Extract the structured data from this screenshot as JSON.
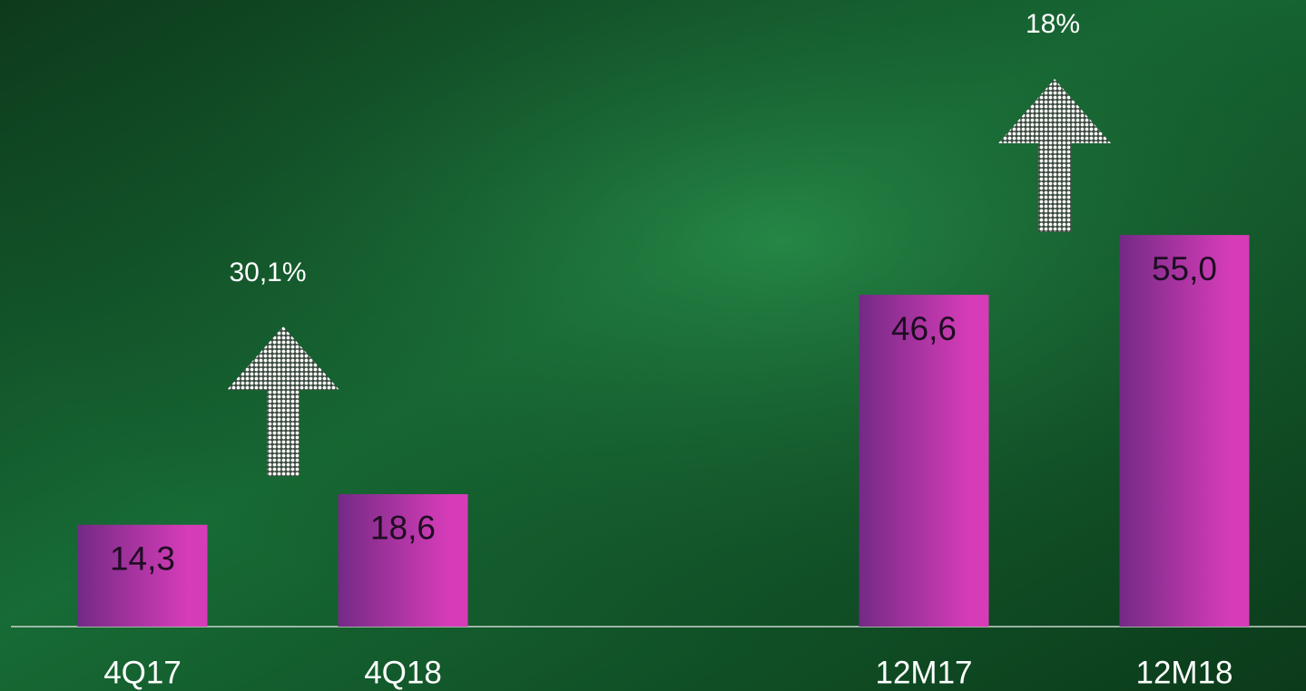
{
  "chart_data": {
    "type": "bar",
    "categories": [
      "4Q17",
      "4Q18",
      null,
      "12M17",
      "12M18"
    ],
    "values": [
      14.3,
      18.6,
      null,
      46.6,
      55.0
    ],
    "value_labels": [
      "14,3",
      "18,6",
      null,
      "46,6",
      "55,0"
    ],
    "color": "#d63cb8",
    "ylim": [
      0,
      88
    ],
    "annotations": [
      "30,1%",
      "18%"
    ]
  }
}
